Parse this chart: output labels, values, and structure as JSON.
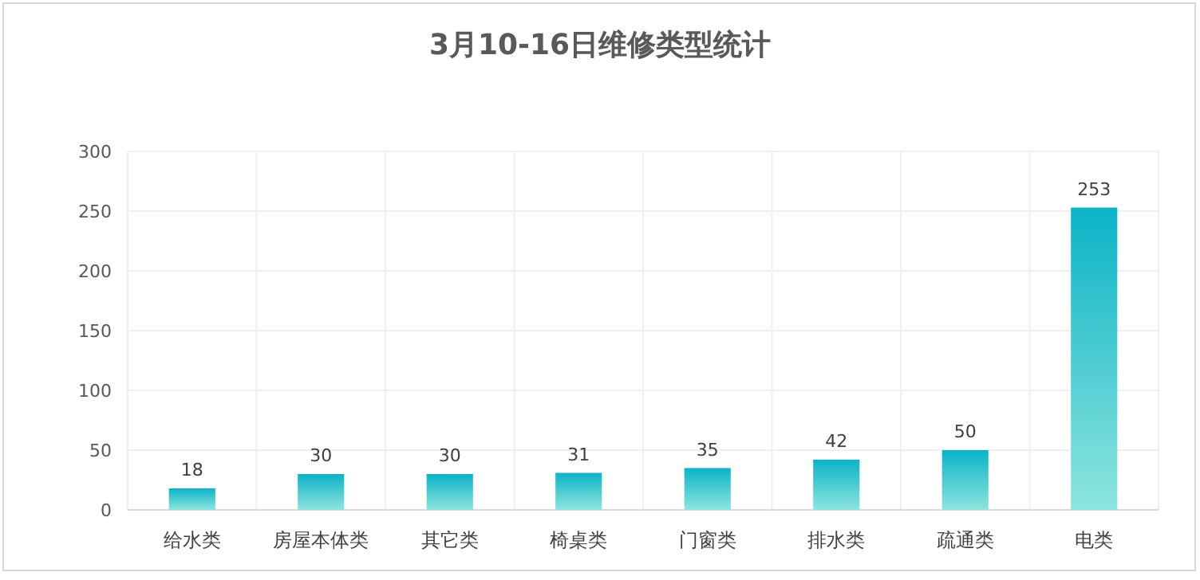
{
  "chart_data": {
    "type": "bar",
    "title": "3月10-16日维修类型统计",
    "categories": [
      "给水类",
      "房屋本体类",
      "其它类",
      "椅桌类",
      "门窗类",
      "排水类",
      "疏通类",
      "电类"
    ],
    "values": [
      18,
      30,
      30,
      31,
      35,
      42,
      50,
      253
    ],
    "color": "#0bb3c7",
    "ylim": [
      0,
      300
    ],
    "yticks": [
      0,
      50,
      100,
      150,
      200,
      250,
      300
    ],
    "grid": true,
    "data_labels": true
  }
}
